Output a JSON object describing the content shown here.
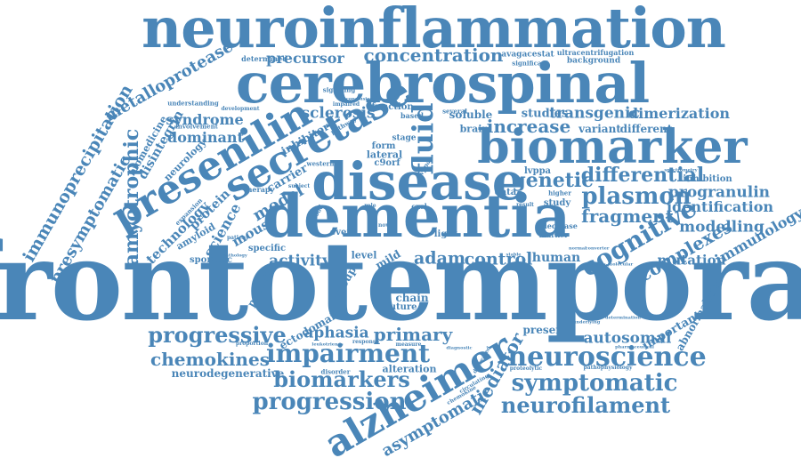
{
  "color": "#4a86b8",
  "words": {
    "frontotemporal": "frontotemporal",
    "neuroinflammation": "neuroinflammation",
    "cerebrospinal": "cerebrospinal",
    "dementia": "dementia",
    "disease": "disease",
    "biomarker": "biomarker",
    "presenilin": "presenilin",
    "secretase": "secretase",
    "fluid": "fluid",
    "alzheimer": "alzheimer",
    "neuroscience": "neuroscience",
    "impairment": "impairment",
    "cognitive": "cognitive",
    "symptomatic": "symptomatic",
    "progressive": "progressive",
    "progression": "progression",
    "neurofilament": "neurofilament",
    "biomarkers": "biomarkers",
    "chemokines": "chemokines",
    "concentration": "concentration",
    "metalloprotease": "metalloprotease",
    "immunoprecipitation": "immunoprecipitation",
    "amyotrophic": "amyotrophic",
    "presymptomatic": "presymptomatic",
    "plasmon": "plasmon",
    "genetic": "genetic",
    "differential": "differential",
    "fragment": "fragment",
    "complexes": "complexes",
    "increase": "increase",
    "sclerosis": "sclerosis",
    "syndrome": "syndrome",
    "dominant": "dominant",
    "transgenic": "transgenic",
    "dimerization": "dimerization",
    "progranulin": "progranulin",
    "identification": "identification",
    "modelling": "modelling",
    "mutation": "mutation",
    "immunology": "immunology",
    "autosomal": "autosomal",
    "aphasia": "aphasia",
    "primary": "primary",
    "asymptomatic": "asymptomatic",
    "mediator": "mediator",
    "activity": "activity",
    "control": "control",
    "adam": "adam",
    "human": "human",
    "model": "model",
    "mouse": "mouse",
    "carrier": "carrier",
    "science": "science",
    "technology": "technology",
    "protein": "protein",
    "disintegrin": "disintegrin",
    "precursor": "precursor",
    "inhibitor": "inhibitor",
    "neurodegenerative": "neurodegenerative",
    "ectodomain": "ectodomain",
    "alteration": "alteration",
    "present": "present",
    "important": "important",
    "abnormalities": "abnormalities",
    "group": "group",
    "potential": "potential",
    "lateral": "lateral",
    "c9orf": "c9orf",
    "studies": "studies",
    "variant": "variant",
    "different": "different",
    "brain": "brain",
    "soluble": "soluble",
    "lvppa": "lvppa",
    "inhibition": "inhibition",
    "biomedicine": "biomedicine",
    "neurology": "neurology",
    "amyloid": "amyloid",
    "sporadic": "sporadic",
    "specific": "specific",
    "event": "event",
    "level": "level",
    "mild": "mild",
    "chain": "chain",
    "future": "future",
    "light": "light",
    "study": "study",
    "data": "data",
    "form": "form",
    "stage": "stage",
    "function": "function",
    "based": "based",
    "determined": "determined",
    "avagacestat": "avagacestat",
    "ultracentrifugation": "ultracentrifugation",
    "background": "background",
    "significant": "significant",
    "signaling": "signaling",
    "several": "several",
    "understanding": "understanding",
    "involvement": "involvement",
    "development": "development",
    "impaired": "impaired",
    "pathway": "pathway",
    "conclusion": "conclusion",
    "western": "western",
    "therapy": "therapy",
    "subject": "subject",
    "expansion": "expansion",
    "patient": "patient",
    "pathology": "pathology",
    "blood": "blood",
    "novel": "novel",
    "role": "role",
    "cxcl": "cxcl",
    "svppa": "svppa",
    "higher": "higher",
    "result": "result",
    "decrease": "decrease",
    "marker": "marker",
    "spectrometry": "spectrometry",
    "determination": "determination",
    "circulating": "circulating",
    "proteolytic": "proteolytic",
    "pathophysiology": "pathophysiology",
    "pharmaceutical": "pharmaceutical",
    "leukotrienes": "leukotrienes",
    "response": "response",
    "measure": "measure",
    "proportion": "proportion",
    "disorder": "disorder",
    "diagnostic": "diagnostic",
    "decreased": "decreased",
    "chemokine": "chemokine",
    "more": "more",
    "stable": "stable",
    "molecular": "molecular",
    "neuregulin": "neuregulin",
    "underlying": "underlying",
    "normal": "normal",
    "converter": "converter",
    "ectodomain2": "ectodomain"
  }
}
